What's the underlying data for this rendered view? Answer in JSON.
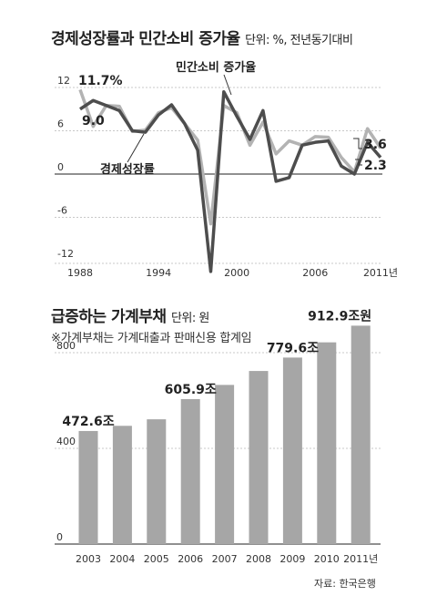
{
  "chart1": {
    "title": "경제성장률과 민간소비 증가율",
    "unit": "단위: %, 전년동기대비"
  },
  "chart2": {
    "title": "급증하는 가계부채",
    "unit": "단위: 원",
    "note": "※가계부채는 가계대출과 판매신용 합계임"
  },
  "source": "자료: 한국은행",
  "colors": {
    "line_dark": "#4d4d4d",
    "line_light": "#b3b3b3",
    "bar": "#a6a6a6",
    "grid": "#c8c8c8"
  },
  "chart_data": [
    {
      "type": "line",
      "title": "경제성장률과 민간소비 증가율",
      "ylim": [
        -12,
        13
      ],
      "y_ticks": [
        "12",
        "6",
        "0",
        "-6",
        "-12"
      ],
      "x_ticks": [
        "1988",
        "1994",
        "2000",
        "2006",
        "2011년"
      ],
      "x": [
        1988,
        1989,
        1990,
        1991,
        1992,
        1993,
        1994,
        1995,
        1996,
        1997,
        1998,
        1999,
        2000,
        2001,
        2002,
        2003,
        2004,
        2005,
        2006,
        2007,
        2008,
        2009,
        2010,
        2011
      ],
      "series": [
        {
          "name": "민간소비 증가율",
          "color": "dark",
          "values": [
            9.0,
            10.2,
            9.5,
            8.8,
            6.0,
            5.8,
            8.2,
            9.6,
            7.0,
            3.3,
            -13.5,
            11.4,
            8.0,
            4.8,
            8.8,
            -1.0,
            -0.5,
            4.0,
            4.4,
            4.6,
            1.1,
            0.0,
            4.4,
            2.3
          ]
        },
        {
          "name": "경제성장률",
          "color": "light",
          "values": [
            11.7,
            6.6,
            9.5,
            9.4,
            5.9,
            6.1,
            8.5,
            9.2,
            7.0,
            4.7,
            -6.9,
            9.5,
            8.5,
            4.0,
            7.2,
            2.8,
            4.6,
            4.0,
            5.2,
            5.1,
            2.3,
            0.3,
            6.3,
            3.6
          ]
        }
      ],
      "value_labels": {
        "first_growth": "11.7%",
        "first_consumption": "9.0",
        "last_growth": "3.6",
        "last_consumption": "2.3"
      }
    },
    {
      "type": "bar",
      "title": "급증하는 가계부채",
      "categories": [
        "2003",
        "2004",
        "2005",
        "2006",
        "2007",
        "2008",
        "2009",
        "2010",
        "2011년"
      ],
      "values": [
        472.6,
        494.2,
        521.5,
        605.9,
        665.3,
        723.5,
        779.6,
        843.2,
        912.9
      ],
      "ylim": [
        0,
        1000
      ],
      "y_ticks": [
        "800",
        "400",
        "0"
      ],
      "value_labels": {
        "0": "472.6조",
        "3": "605.9조",
        "6": "779.6조",
        "8": "912.9조원"
      }
    }
  ]
}
